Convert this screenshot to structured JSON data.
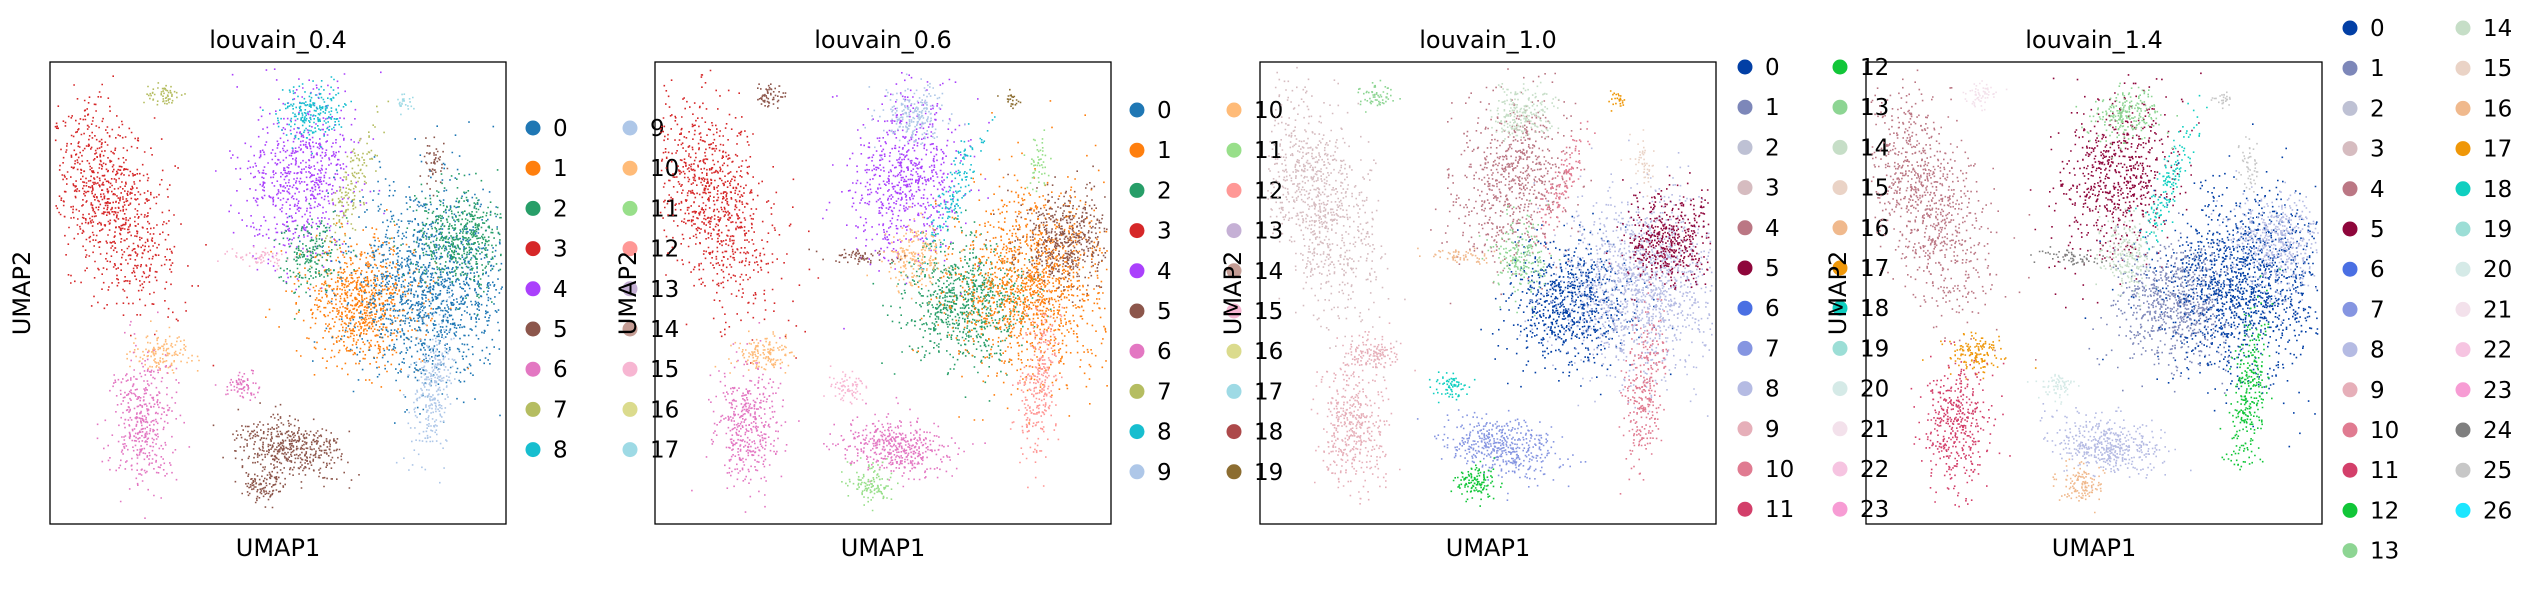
{
  "chart_data": [
    {
      "type": "scatter",
      "title": "louvain_0.4",
      "xlabel": "UMAP1",
      "ylabel": "UMAP2",
      "legend": {
        "placement": "right",
        "labels": [
          "0",
          "1",
          "2",
          "3",
          "4",
          "5",
          "6",
          "7",
          "8",
          "9",
          "10",
          "11",
          "12",
          "13",
          "14",
          "15",
          "16",
          "17"
        ],
        "colors": [
          "#1f77b4",
          "#ff7f0e",
          "#279e68",
          "#d62728",
          "#aa40fc",
          "#8c564b",
          "#e377c2",
          "#b5bd61",
          "#17becf",
          "#aec7e8",
          "#ffbb78",
          "#98df8a",
          "#ff9896",
          "#c5b0d5",
          "#c49c94",
          "#f7b6d2",
          "#dbdb8d",
          "#9edae5"
        ]
      }
    },
    {
      "type": "scatter",
      "title": "louvain_0.6",
      "xlabel": "UMAP1",
      "ylabel": "UMAP2",
      "legend": {
        "placement": "right",
        "labels": [
          "0",
          "1",
          "2",
          "3",
          "4",
          "5",
          "6",
          "7",
          "8",
          "9",
          "10",
          "11",
          "12",
          "13",
          "14",
          "15",
          "16",
          "17",
          "18",
          "19"
        ],
        "colors": [
          "#1f77b4",
          "#ff7f0e",
          "#279e68",
          "#d62728",
          "#aa40fc",
          "#8c564b",
          "#e377c2",
          "#b5bd61",
          "#17becf",
          "#aec7e8",
          "#ffbb78",
          "#98df8a",
          "#ff9896",
          "#c5b0d5",
          "#c49c94",
          "#f7b6d2",
          "#dbdb8d",
          "#9edae5",
          "#ad494a",
          "#8c6d31"
        ]
      }
    },
    {
      "type": "scatter",
      "title": "louvain_1.0",
      "xlabel": "UMAP1",
      "ylabel": "UMAP2",
      "legend": {
        "placement": "right",
        "labels": [
          "0",
          "1",
          "2",
          "3",
          "4",
          "5",
          "6",
          "7",
          "8",
          "9",
          "10",
          "11",
          "12",
          "13",
          "14",
          "15",
          "16",
          "17",
          "18",
          "19",
          "20",
          "21",
          "22",
          "23"
        ],
        "colors": [
          "#023fa5",
          "#7d87b9",
          "#bec1d4",
          "#d6bcc0",
          "#bb7784",
          "#8e063b",
          "#4a6fe3",
          "#8595e1",
          "#b5bbe3",
          "#e6afb9",
          "#e07b91",
          "#d33f6a",
          "#11c638",
          "#8dd593",
          "#c6dec7",
          "#ead3c6",
          "#f0b98d",
          "#ef9708",
          "#0fcfc0",
          "#9cded6",
          "#d5eae7",
          "#f3e1eb",
          "#f6c4e1",
          "#f79cd4"
        ]
      }
    },
    {
      "type": "scatter",
      "title": "louvain_1.4",
      "xlabel": "UMAP1",
      "ylabel": "UMAP2",
      "legend": {
        "placement": "right",
        "labels": [
          "0",
          "1",
          "2",
          "3",
          "4",
          "5",
          "6",
          "7",
          "8",
          "9",
          "10",
          "11",
          "12",
          "13",
          "14",
          "15",
          "16",
          "17",
          "18",
          "19",
          "20",
          "21",
          "22",
          "23",
          "24",
          "25",
          "26"
        ],
        "colors": [
          "#023fa5",
          "#7d87b9",
          "#bec1d4",
          "#d6bcc0",
          "#bb7784",
          "#8e063b",
          "#4a6fe3",
          "#8595e1",
          "#b5bbe3",
          "#e6afb9",
          "#e07b91",
          "#d33f6a",
          "#11c638",
          "#8dd593",
          "#c6dec7",
          "#ead3c6",
          "#f0b98d",
          "#ef9708",
          "#0fcfc0",
          "#9cded6",
          "#d5eae7",
          "#f3e1eb",
          "#f6c4e1",
          "#f79cd4",
          "#7f7f7f",
          "#c7c7c7",
          "#1ce6ff"
        ]
      }
    }
  ]
}
